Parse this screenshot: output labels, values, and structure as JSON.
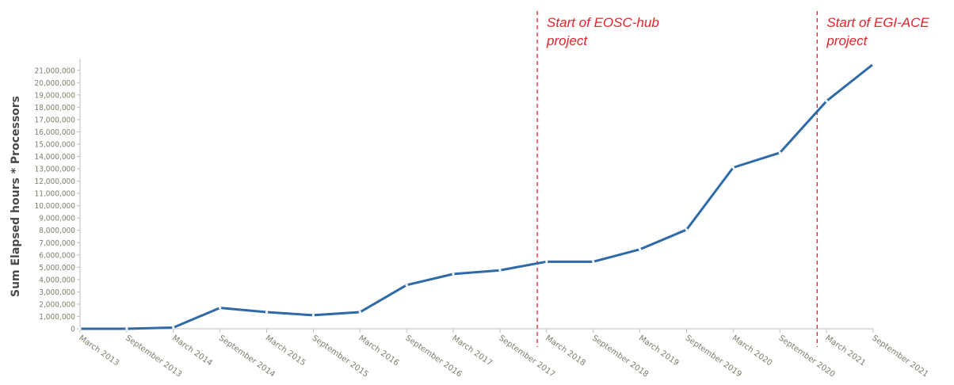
{
  "chart_data": {
    "type": "line",
    "ylabel": "Sum Elapsed hours * Processors",
    "xlabel": "",
    "title": "",
    "ylim": [
      0,
      21000000
    ],
    "yticks": [
      0,
      1000000,
      2000000,
      3000000,
      4000000,
      5000000,
      6000000,
      7000000,
      8000000,
      9000000,
      10000000,
      11000000,
      12000000,
      13000000,
      14000000,
      15000000,
      16000000,
      17000000,
      18000000,
      19000000,
      20000000,
      21000000
    ],
    "ytick_labels": [
      "0",
      "1,000,000",
      "2,000,000",
      "3,000,000",
      "4,000,000",
      "5,000,000",
      "6,000,000",
      "7,000,000",
      "8,000,000",
      "9,000,000",
      "10,000,000",
      "11,000,000",
      "12,000,000",
      "13,000,000",
      "14,000,000",
      "15,000,000",
      "16,000,000",
      "17,000,000",
      "18,000,000",
      "19,000,000",
      "20,000,000",
      "21,000,000"
    ],
    "categories": [
      "March 2013",
      "September 2013",
      "March 2014",
      "September 2014",
      "March 2015",
      "September 2015",
      "March 2016",
      "September 2016",
      "March 2017",
      "September 2017",
      "March 2018",
      "September 2018",
      "March 2019",
      "September 2019",
      "March 2020",
      "September 2020",
      "March 2021",
      "September 2021"
    ],
    "series": [
      {
        "color": "#2f6aa8",
        "values": [
          0,
          0,
          100000,
          1700000,
          1350000,
          1100000,
          1350000,
          3550000,
          4450000,
          4750000,
          5450000,
          5450000,
          6450000,
          8050000,
          13100000,
          14300000,
          18500000,
          21500000
        ]
      }
    ],
    "annotations": [
      {
        "type": "vline",
        "between": [
          "September 2017",
          "March 2018"
        ],
        "fraction": 0.8,
        "color": "#e8222a",
        "text_lines": [
          "Start of EOSC-hub",
          "project"
        ]
      },
      {
        "type": "vline",
        "between": [
          "September 2020",
          "March 2021"
        ],
        "fraction": 0.8,
        "color": "#e8222a",
        "text_lines": [
          "Start of EGI-ACE",
          "project"
        ]
      }
    ],
    "grid": false,
    "legend": "none"
  }
}
